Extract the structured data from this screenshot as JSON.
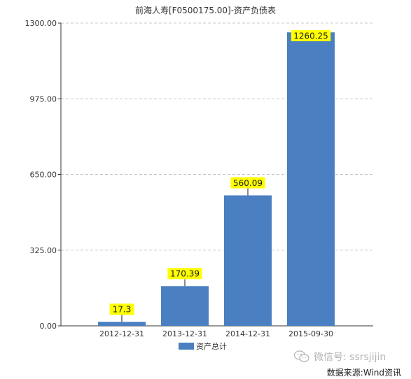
{
  "chart_data": {
    "type": "bar",
    "title": "前海人寿[F0500175.00]-资产负债表",
    "categories": [
      "2012-12-31",
      "2013-12-31",
      "2014-12-31",
      "2015-09-30"
    ],
    "series": [
      {
        "name": "资产总计",
        "values": [
          17.3,
          170.39,
          560.09,
          1260.25
        ],
        "labels": [
          "17.3",
          "170.39",
          "560.09",
          "1260.25"
        ],
        "color": "#4a7fc1"
      }
    ],
    "ylim": [
      0,
      1300
    ],
    "yticks": [
      0,
      325,
      650,
      975,
      1300
    ],
    "ytick_labels": [
      "0.00",
      "325.00",
      "650.00",
      "975.00",
      "1300.00"
    ],
    "grid": true,
    "legend_position": "bottom-center",
    "data_label_background": "#ffff00",
    "xlabel": "",
    "ylabel": ""
  },
  "watermark": {
    "icon": "wechat-icon",
    "text": "微信号: ssrsjijin"
  },
  "source_text": "数据来源:Wind资讯"
}
